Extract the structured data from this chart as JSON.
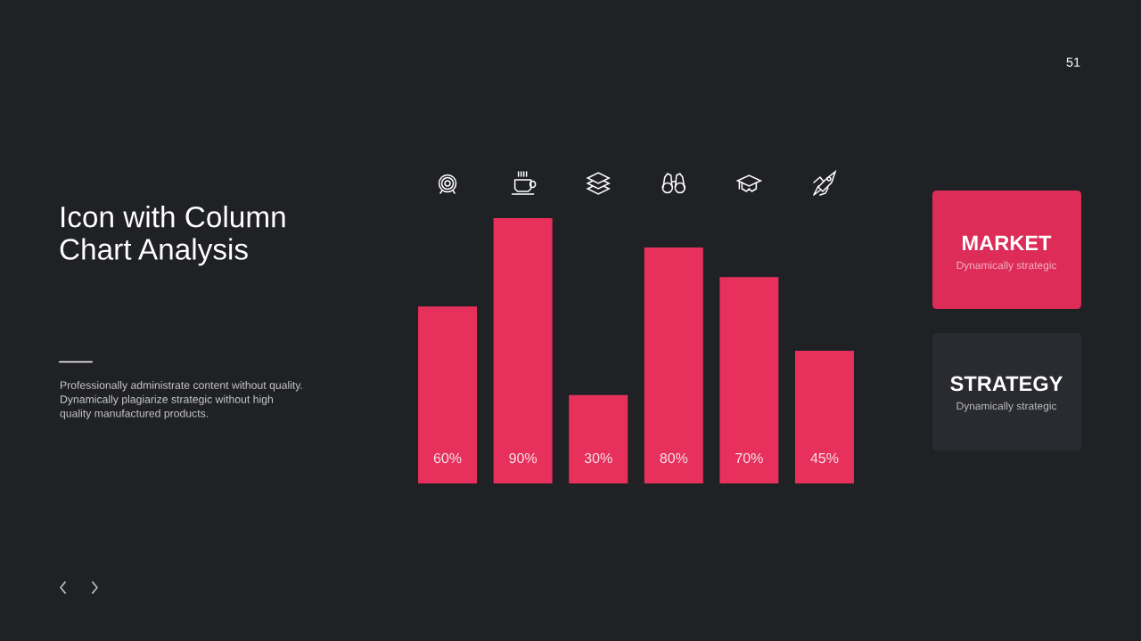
{
  "chart_data": {
    "type": "bar",
    "title": "Icon with Column\nChart Analysis",
    "categories": [
      null,
      null,
      null,
      null,
      null,
      null
    ],
    "values": [
      60,
      90,
      30,
      80,
      70,
      45
    ],
    "color": "#e8305c",
    "value_labels": [
      "60%",
      "90%",
      "30%",
      "80%",
      "70%",
      "45%"
    ],
    "tick_labels": false,
    "annotations": [
      "51",
      "Professionally administrate content without quality.\nDynamically plagiarize strategic without high\nquality manufactured products.",
      "MARKET",
      "Dynamically strategic",
      "STRATEGY",
      "Dynamically strategic"
    ]
  }
}
